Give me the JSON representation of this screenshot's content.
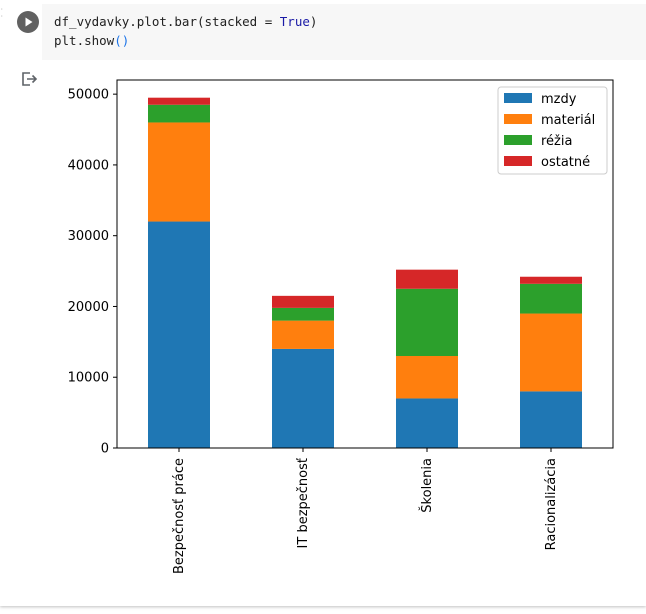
{
  "cell": {
    "code_lines": [
      {
        "pre": "df_vydavky.plot.bar(stacked = ",
        "kw": "True",
        "post": ")"
      },
      {
        "pre": "plt.show",
        "paren": "()",
        "post": ""
      }
    ],
    "run_button_icon": "play-icon",
    "output_icon": "output-redirect-icon"
  },
  "chart_data": {
    "type": "bar",
    "stacked": true,
    "categories": [
      "Bezpečnosť práce",
      "IT bezpečnosť",
      "Školenia",
      "Racionalizácia"
    ],
    "series": [
      {
        "name": "mzdy",
        "color": "#1f77b4",
        "values": [
          32000,
          14000,
          7000,
          8000
        ]
      },
      {
        "name": "materiál",
        "color": "#ff7f0e",
        "values": [
          14000,
          4000,
          6000,
          11000
        ]
      },
      {
        "name": "réžia",
        "color": "#2ca02c",
        "values": [
          2500,
          1800,
          9500,
          4200
        ]
      },
      {
        "name": "ostatné",
        "color": "#d62728",
        "values": [
          1000,
          1700,
          2700,
          1000
        ]
      }
    ],
    "ylim": [
      0,
      52000
    ],
    "yticks": [
      0,
      10000,
      20000,
      30000,
      40000,
      50000
    ],
    "ytick_labels": [
      "0",
      "10000",
      "20000",
      "30000",
      "40000",
      "50000"
    ],
    "legend_position": "top-right",
    "grid": false
  }
}
